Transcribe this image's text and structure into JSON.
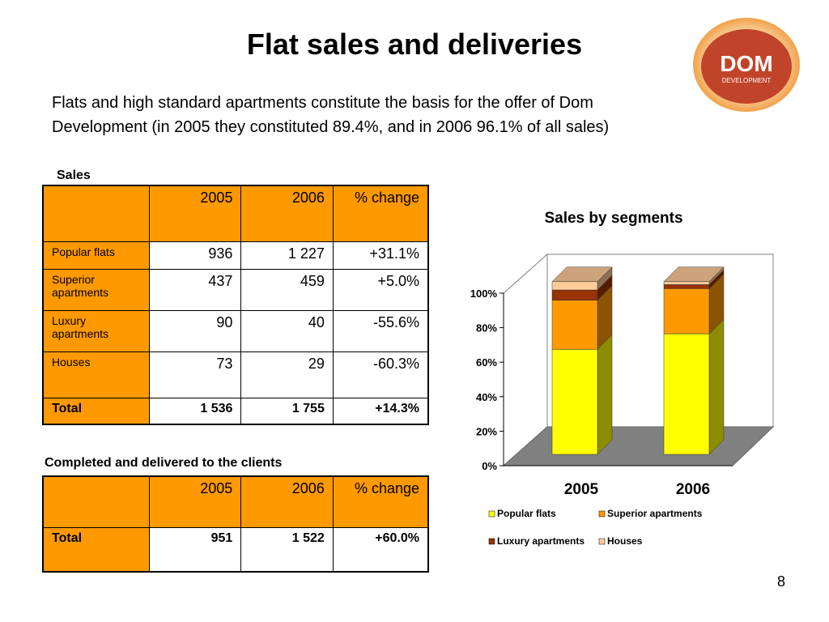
{
  "title": "Flat sales and deliveries",
  "subtitle": "Flats and high standard apartments constitute the basis for the offer of Dom Development (in 2005 they constituted 89.4%, and in 2006 96.1% of all sales)",
  "logo": {
    "name": "DOM",
    "tagline": "DEVELOPMENT"
  },
  "sales_table": {
    "caption": "Sales",
    "columns": [
      "2005",
      "2006",
      "% change"
    ],
    "rows": [
      [
        "Popular flats",
        "936",
        "1 227",
        "+31.1%"
      ],
      [
        "Superior apartments",
        "437",
        "459",
        "+5.0%"
      ],
      [
        "Luxury apartments",
        "90",
        "40",
        "-55.6%"
      ],
      [
        "Houses",
        "73",
        "29",
        "-60.3%"
      ]
    ],
    "total": [
      "Total",
      "1 536",
      "1 755",
      "+14.3%"
    ]
  },
  "deliveries_table": {
    "caption": "Completed and delivered to the clients",
    "columns": [
      "2005",
      "2006",
      "% change"
    ],
    "total": [
      "Total",
      "951",
      "1 522",
      "+60.0%"
    ]
  },
  "chart_data": {
    "type": "bar",
    "stacked": true,
    "title": "Sales by segments",
    "categories": [
      "2005",
      "2006"
    ],
    "series": [
      {
        "name": "Popular flats",
        "color": "#ffff00",
        "values": [
          60.9,
          69.9
        ]
      },
      {
        "name": "Superior apartments",
        "color": "#ff9900",
        "values": [
          28.5,
          26.2
        ]
      },
      {
        "name": "Luxury apartments",
        "color": "#993300",
        "values": [
          5.9,
          2.3
        ]
      },
      {
        "name": "Houses",
        "color": "#ffcc99",
        "values": [
          4.8,
          1.7
        ]
      }
    ],
    "ylim": [
      0,
      100
    ],
    "yticks": [
      {
        "value": 0,
        "label": "0%"
      },
      {
        "value": 20,
        "label": "20%"
      },
      {
        "value": 40,
        "label": "40%"
      },
      {
        "value": 60,
        "label": "60%"
      },
      {
        "value": 80,
        "label": "80%"
      },
      {
        "value": 100,
        "label": "100%"
      }
    ],
    "legend": "bottom"
  },
  "page_number": "8"
}
